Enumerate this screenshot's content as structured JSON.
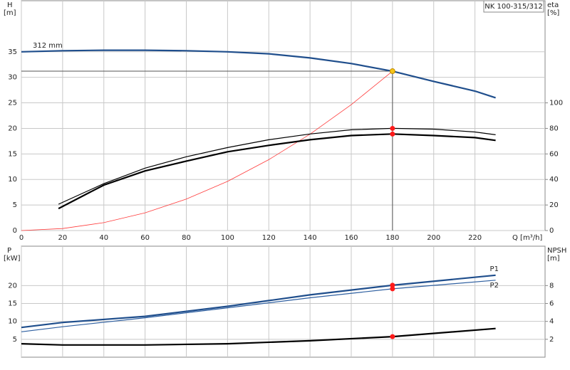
{
  "chart_data": [
    {
      "type": "line",
      "title": "NK 100-315/312",
      "ylabel": "H",
      "yunit": "[m]",
      "y2label": "eta",
      "y2unit": "[%]",
      "xlabel": "Q [m³/h]",
      "xlim": [
        0,
        254
      ],
      "xticks": [
        0,
        20,
        40,
        60,
        80,
        100,
        120,
        140,
        160,
        180,
        200,
        220
      ],
      "ylim": [
        0,
        45
      ],
      "yticks": [
        0,
        5,
        10,
        15,
        20,
        25,
        30,
        35
      ],
      "y2lim": [
        0,
        180
      ],
      "y2ticks": [
        0,
        20,
        40,
        60,
        80,
        100
      ],
      "grid": true,
      "series": [
        {
          "name": "312 mm",
          "color": "#1f4e8c",
          "width": 2.2,
          "x": [
            0,
            20,
            40,
            60,
            80,
            100,
            120,
            140,
            160,
            180,
            200,
            220,
            230
          ],
          "values": [
            35.0,
            35.2,
            35.3,
            35.3,
            35.2,
            35.0,
            34.6,
            33.8,
            32.7,
            31.2,
            29.2,
            27.3,
            26.0
          ]
        },
        {
          "color": "#ff3b3b",
          "width": 0.8,
          "x": [
            0,
            20,
            40,
            60,
            80,
            100,
            120,
            140,
            160,
            180
          ],
          "values": [
            0,
            0.39,
            1.54,
            3.47,
            6.16,
            9.63,
            13.87,
            18.87,
            24.65,
            31.2
          ]
        },
        {
          "color": "#000000",
          "width": 1.2,
          "axis": "y2",
          "x": [
            18,
            40,
            60,
            80,
            100,
            120,
            140,
            160,
            180,
            200,
            220,
            230
          ],
          "values": [
            20.6,
            36.7,
            48.9,
            57.8,
            65.0,
            71.1,
            75.6,
            78.9,
            80.0,
            79.4,
            77.2,
            75.0
          ]
        },
        {
          "color": "#000000",
          "width": 2.2,
          "axis": "y2",
          "x": [
            18,
            40,
            60,
            80,
            100,
            120,
            140,
            160,
            180,
            200,
            220,
            230
          ],
          "values": [
            17.2,
            35.6,
            46.7,
            54.4,
            61.7,
            66.7,
            71.1,
            74.4,
            75.6,
            74.4,
            72.8,
            70.6
          ]
        }
      ],
      "markers": [
        {
          "x": 180,
          "value": 31.2,
          "color": "#f5c518"
        },
        {
          "x": 180,
          "value": 80.0,
          "axis": "y2",
          "color": "#ff1a1a"
        },
        {
          "x": 180,
          "value": 75.6,
          "axis": "y2",
          "color": "#ff1a1a"
        }
      ]
    },
    {
      "type": "line",
      "ylabel": "P",
      "yunit": "[kW]",
      "y2label": "NPSH",
      "y2unit": "[m]",
      "xlim": [
        0,
        254
      ],
      "xticks": [
        0,
        20,
        40,
        60,
        80,
        100,
        120,
        140,
        160,
        180,
        200,
        220
      ],
      "ylim": [
        0,
        31
      ],
      "yticks": [
        5,
        10,
        15,
        20
      ],
      "y2lim": [
        0,
        12.4
      ],
      "y2ticks": [
        2,
        4,
        6,
        8
      ],
      "grid": true,
      "series": [
        {
          "name": "P1",
          "color": "#1f4e8c",
          "width": 2.2,
          "x": [
            0,
            20,
            60,
            100,
            140,
            180,
            230
          ],
          "values": [
            8.3,
            9.7,
            11.4,
            14.2,
            17.4,
            20.1,
            22.9
          ]
        },
        {
          "name": "P2",
          "color": "#2e5fa0",
          "width": 1.2,
          "x": [
            0,
            20,
            60,
            100,
            140,
            180,
            230
          ],
          "values": [
            7.1,
            8.5,
            11.0,
            13.8,
            16.6,
            19.1,
            21.5
          ]
        },
        {
          "color": "#000000",
          "width": 2.2,
          "axis": "y2",
          "x": [
            0,
            20,
            60,
            100,
            140,
            180,
            230
          ],
          "values": [
            1.5,
            1.37,
            1.37,
            1.5,
            1.84,
            2.3,
            3.2
          ]
        }
      ],
      "markers": [
        {
          "x": 180,
          "value": 20.1,
          "color": "#ff1a1a"
        },
        {
          "x": 180,
          "value": 19.1,
          "color": "#ff1a1a"
        },
        {
          "x": 180,
          "value": 2.3,
          "axis": "y2",
          "color": "#ff1a1a"
        }
      ]
    }
  ]
}
